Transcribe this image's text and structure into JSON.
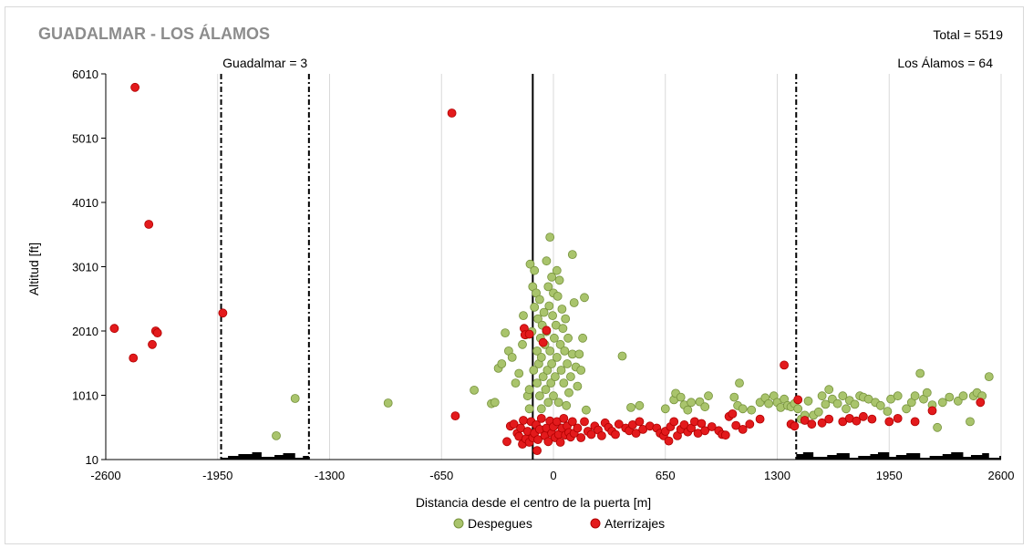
{
  "chart_data": {
    "type": "scatter",
    "title": "GUADALMAR  - LOS ÁLAMOS",
    "total_label": "Total = 5519",
    "xlabel": "Distancia desde el centro de la puerta [m]",
    "ylabel": "Altitud [ft]",
    "xlim": [
      -2600,
      2600
    ],
    "ylim": [
      10,
      6010
    ],
    "xticks": [
      -2600,
      -1950,
      -1300,
      -650,
      0,
      650,
      1300,
      1950,
      2600
    ],
    "xtick_labels": [
      "-2600",
      "-1950",
      "-1300",
      "-650",
      "0",
      "650",
      "1300",
      "1950",
      "2600"
    ],
    "yticks": [
      10,
      1010,
      2010,
      3010,
      4010,
      5010,
      6010
    ],
    "ytick_labels": [
      "10",
      "1010",
      "2010",
      "3010",
      "4010",
      "5010",
      "6010"
    ],
    "grid": "vertical",
    "legend": "bottom",
    "gate_line_x": -120,
    "zones": [
      {
        "label": "Guadalmar = 3",
        "x_start": -1930,
        "x_end": -1420
      },
      {
        "label": "Los Álamos = 64",
        "x_start": 1410,
        "x_end": 2600
      }
    ],
    "series": [
      {
        "name": "Despegues",
        "color": "#a9c46c",
        "stroke": "#76923c",
        "points": [
          [
            -1610,
            380
          ],
          [
            -1500,
            960
          ],
          [
            -960,
            890
          ],
          [
            -460,
            1090
          ],
          [
            -360,
            880
          ],
          [
            -340,
            900
          ],
          [
            -320,
            1430
          ],
          [
            -300,
            1500
          ],
          [
            -280,
            1980
          ],
          [
            -260,
            1700
          ],
          [
            -240,
            1600
          ],
          [
            -220,
            1200
          ],
          [
            -200,
            1350
          ],
          [
            -180,
            1800
          ],
          [
            -175,
            2250
          ],
          [
            -160,
            1950
          ],
          [
            -150,
            1000
          ],
          [
            -140,
            1100
          ],
          [
            -140,
            800
          ],
          [
            -135,
            3050
          ],
          [
            -125,
            2000
          ],
          [
            -120,
            2700
          ],
          [
            -115,
            1400
          ],
          [
            -110,
            2950
          ],
          [
            -110,
            2380
          ],
          [
            -100,
            2600
          ],
          [
            -95,
            1700
          ],
          [
            -95,
            1200
          ],
          [
            -90,
            2200
          ],
          [
            -85,
            1500
          ],
          [
            -80,
            2500
          ],
          [
            -80,
            1000
          ],
          [
            -75,
            1900
          ],
          [
            -70,
            800
          ],
          [
            -70,
            1600
          ],
          [
            -65,
            2100
          ],
          [
            -60,
            1300
          ],
          [
            -55,
            2300
          ],
          [
            -50,
            1800
          ],
          [
            -45,
            1100
          ],
          [
            -40,
            3100
          ],
          [
            -40,
            2000
          ],
          [
            -35,
            1400
          ],
          [
            -30,
            2700
          ],
          [
            -30,
            900
          ],
          [
            -25,
            2400
          ],
          [
            -20,
            1700
          ],
          [
            -20,
            3470
          ],
          [
            -15,
            1200
          ],
          [
            -10,
            2850
          ],
          [
            -10,
            1500
          ],
          [
            -5,
            2250
          ],
          [
            0,
            2600
          ],
          [
            0,
            1000
          ],
          [
            5,
            1900
          ],
          [
            10,
            1300
          ],
          [
            15,
            2100
          ],
          [
            20,
            2950
          ],
          [
            20,
            1600
          ],
          [
            25,
            2550
          ],
          [
            30,
            900
          ],
          [
            35,
            2800
          ],
          [
            40,
            1800
          ],
          [
            45,
            1400
          ],
          [
            50,
            2350
          ],
          [
            55,
            2050
          ],
          [
            60,
            1200
          ],
          [
            65,
            1700
          ],
          [
            70,
            2200
          ],
          [
            75,
            850
          ],
          [
            80,
            1500
          ],
          [
            85,
            1900
          ],
          [
            90,
            1050
          ],
          [
            100,
            1300
          ],
          [
            110,
            3200
          ],
          [
            110,
            1650
          ],
          [
            120,
            2450
          ],
          [
            130,
            1450
          ],
          [
            140,
            1150
          ],
          [
            150,
            1650
          ],
          [
            160,
            1400
          ],
          [
            170,
            1900
          ],
          [
            180,
            2530
          ],
          [
            190,
            780
          ],
          [
            400,
            1620
          ],
          [
            450,
            820
          ],
          [
            500,
            850
          ],
          [
            650,
            800
          ],
          [
            700,
            940
          ],
          [
            710,
            1040
          ],
          [
            740,
            980
          ],
          [
            760,
            860
          ],
          [
            780,
            780
          ],
          [
            800,
            900
          ],
          [
            850,
            910
          ],
          [
            880,
            830
          ],
          [
            900,
            1000
          ],
          [
            1050,
            980
          ],
          [
            1070,
            850
          ],
          [
            1080,
            1200
          ],
          [
            1100,
            800
          ],
          [
            1150,
            780
          ],
          [
            1200,
            900
          ],
          [
            1230,
            970
          ],
          [
            1250,
            880
          ],
          [
            1280,
            1000
          ],
          [
            1300,
            900
          ],
          [
            1320,
            820
          ],
          [
            1340,
            950
          ],
          [
            1360,
            850
          ],
          [
            1380,
            830
          ],
          [
            1400,
            880
          ],
          [
            1420,
            800
          ],
          [
            1440,
            640
          ],
          [
            1460,
            700
          ],
          [
            1480,
            920
          ],
          [
            1510,
            700
          ],
          [
            1540,
            750
          ],
          [
            1560,
            1000
          ],
          [
            1580,
            870
          ],
          [
            1600,
            1100
          ],
          [
            1620,
            950
          ],
          [
            1650,
            880
          ],
          [
            1680,
            1000
          ],
          [
            1700,
            800
          ],
          [
            1720,
            930
          ],
          [
            1750,
            870
          ],
          [
            1780,
            1000
          ],
          [
            1800,
            980
          ],
          [
            1830,
            950
          ],
          [
            1870,
            900
          ],
          [
            1900,
            850
          ],
          [
            1940,
            760
          ],
          [
            1960,
            950
          ],
          [
            2000,
            1000
          ],
          [
            2050,
            800
          ],
          [
            2080,
            900
          ],
          [
            2100,
            1000
          ],
          [
            2130,
            1350
          ],
          [
            2150,
            950
          ],
          [
            2170,
            1050
          ],
          [
            2200,
            860
          ],
          [
            2230,
            510
          ],
          [
            2260,
            900
          ],
          [
            2300,
            980
          ],
          [
            2350,
            920
          ],
          [
            2380,
            1000
          ],
          [
            2420,
            600
          ],
          [
            2440,
            1000
          ],
          [
            2460,
            1050
          ],
          [
            2490,
            1000
          ],
          [
            2530,
            1300
          ]
        ]
      },
      {
        "name": "Aterrizajes",
        "color": "#e31a1c",
        "stroke": "#b00000",
        "points": [
          [
            -2550,
            2050
          ],
          [
            -2430,
            5800
          ],
          [
            -2440,
            1590
          ],
          [
            -2350,
            3670
          ],
          [
            -2330,
            1800
          ],
          [
            -2310,
            2010
          ],
          [
            -2300,
            1980
          ],
          [
            -1920,
            2290
          ],
          [
            -590,
            5400
          ],
          [
            -570,
            690
          ],
          [
            -270,
            290
          ],
          [
            -250,
            530
          ],
          [
            -230,
            560
          ],
          [
            -210,
            420
          ],
          [
            -200,
            370
          ],
          [
            -190,
            500
          ],
          [
            -180,
            250
          ],
          [
            -175,
            620
          ],
          [
            -170,
            2050
          ],
          [
            -165,
            1950
          ],
          [
            -160,
            330
          ],
          [
            -150,
            450
          ],
          [
            -140,
            1960
          ],
          [
            -140,
            280
          ],
          [
            -130,
            600
          ],
          [
            -120,
            350
          ],
          [
            -110,
            420
          ],
          [
            -100,
            550
          ],
          [
            -95,
            150
          ],
          [
            -90,
            320
          ],
          [
            -80,
            480
          ],
          [
            -70,
            650
          ],
          [
            -60,
            1830
          ],
          [
            -50,
            380
          ],
          [
            -40,
            2020
          ],
          [
            -40,
            500
          ],
          [
            -30,
            290
          ],
          [
            -20,
            610
          ],
          [
            -10,
            420
          ],
          [
            0,
            520
          ],
          [
            10,
            350
          ],
          [
            20,
            600
          ],
          [
            30,
            400
          ],
          [
            40,
            280
          ],
          [
            50,
            500
          ],
          [
            60,
            650
          ],
          [
            70,
            390
          ],
          [
            80,
            530
          ],
          [
            90,
            430
          ],
          [
            100,
            360
          ],
          [
            110,
            600
          ],
          [
            120,
            420
          ],
          [
            140,
            500
          ],
          [
            160,
            350
          ],
          [
            180,
            600
          ],
          [
            200,
            450
          ],
          [
            220,
            400
          ],
          [
            240,
            530
          ],
          [
            260,
            470
          ],
          [
            280,
            380
          ],
          [
            300,
            580
          ],
          [
            320,
            510
          ],
          [
            340,
            450
          ],
          [
            360,
            400
          ],
          [
            380,
            560
          ],
          [
            420,
            500
          ],
          [
            440,
            460
          ],
          [
            460,
            550
          ],
          [
            480,
            420
          ],
          [
            500,
            600
          ],
          [
            520,
            480
          ],
          [
            560,
            530
          ],
          [
            600,
            500
          ],
          [
            620,
            420
          ],
          [
            640,
            380
          ],
          [
            650,
            450
          ],
          [
            670,
            300
          ],
          [
            680,
            520
          ],
          [
            700,
            600
          ],
          [
            720,
            380
          ],
          [
            740,
            480
          ],
          [
            760,
            550
          ],
          [
            780,
            440
          ],
          [
            800,
            500
          ],
          [
            820,
            600
          ],
          [
            840,
            420
          ],
          [
            860,
            570
          ],
          [
            880,
            460
          ],
          [
            920,
            520
          ],
          [
            960,
            460
          ],
          [
            980,
            400
          ],
          [
            1000,
            390
          ],
          [
            1020,
            680
          ],
          [
            1040,
            720
          ],
          [
            1060,
            540
          ],
          [
            1100,
            480
          ],
          [
            1140,
            560
          ],
          [
            1200,
            640
          ],
          [
            1340,
            1480
          ],
          [
            1380,
            560
          ],
          [
            1400,
            530
          ],
          [
            1420,
            940
          ],
          [
            1460,
            620
          ],
          [
            1500,
            560
          ],
          [
            1560,
            580
          ],
          [
            1600,
            640
          ],
          [
            1680,
            600
          ],
          [
            1720,
            650
          ],
          [
            1760,
            610
          ],
          [
            1800,
            680
          ],
          [
            1850,
            640
          ],
          [
            1950,
            600
          ],
          [
            2000,
            650
          ],
          [
            2100,
            600
          ],
          [
            2200,
            770
          ],
          [
            2480,
            900
          ]
        ]
      }
    ]
  }
}
